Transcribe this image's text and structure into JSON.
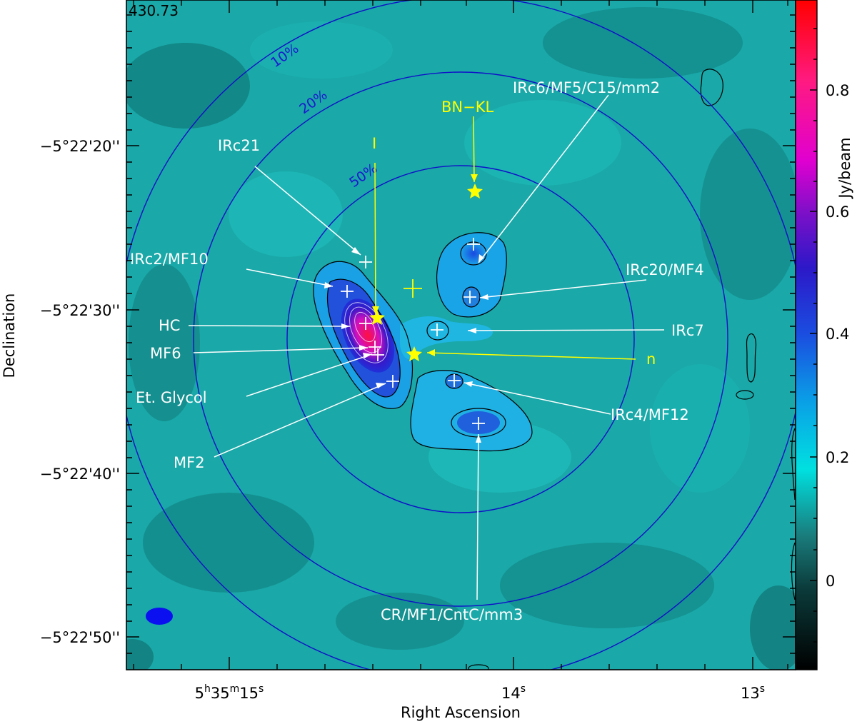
{
  "chart_data": {
    "type": "heatmap",
    "title": "430.73",
    "xlabel": "Right Ascension",
    "ylabel": "Declination",
    "colorbar_label": "Jy/beam",
    "colorbar_ticks": [
      "0.8",
      "0.6",
      "0.4",
      "0.2",
      "0"
    ],
    "colorbar_range": [
      -0.15,
      0.95
    ],
    "x_ticks": [
      {
        "h": "5",
        "m": "35",
        "s": "15"
      },
      {
        "h": "",
        "m": "",
        "s": "14"
      },
      {
        "h": "",
        "m": "",
        "s": "13"
      }
    ],
    "y_ticks": [
      "−5°22'20''",
      "−5°22'30''",
      "−5°22'40''",
      "−5°22'50''"
    ],
    "primary_beam_labels": [
      "10%",
      "20%",
      "50%"
    ],
    "sources": [
      "IRc21",
      "IRc2/MF10",
      "HC",
      "MF6",
      "Et. Glycol",
      "MF2",
      "IRc6/MF5/C15/mm2",
      "IRc20/MF4",
      "IRc7",
      "IRc4/MF12",
      "CR/MF1/CntC/mm3"
    ],
    "yellow_markers": [
      "BN−KL",
      "I",
      "n"
    ],
    "colors": {
      "cmap_low": "#000000",
      "cmap_mid": "#00c8c8",
      "cmap_high": "#ff0000",
      "beam": "#0000ff",
      "annotations": "#ffff00"
    }
  }
}
